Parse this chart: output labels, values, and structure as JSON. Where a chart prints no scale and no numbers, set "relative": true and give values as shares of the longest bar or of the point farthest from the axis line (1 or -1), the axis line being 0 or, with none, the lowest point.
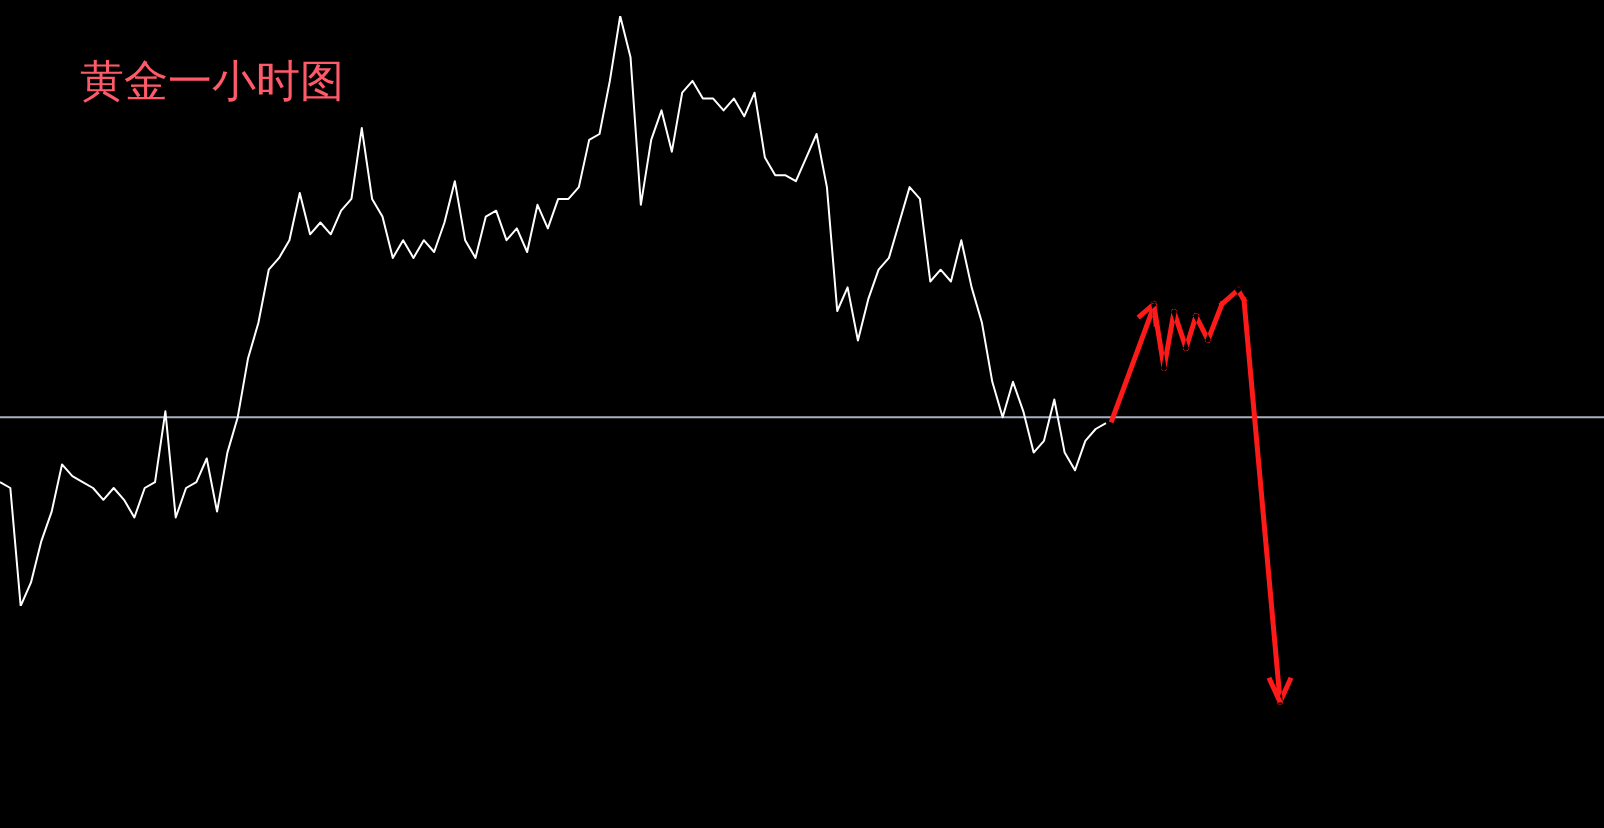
{
  "chart_data": {
    "type": "line",
    "title": "黄金一小时图",
    "relative": true,
    "categories": [
      null,
      null,
      null,
      null,
      null,
      null,
      null,
      null,
      null,
      null,
      null,
      null,
      null,
      null,
      null,
      null,
      null,
      null,
      null,
      null,
      null,
      null,
      null,
      null,
      null,
      null,
      null,
      null,
      null,
      null,
      null,
      null,
      null,
      null,
      null,
      null,
      null,
      null,
      null,
      null,
      null,
      null,
      null,
      null,
      null,
      null,
      null,
      null,
      null,
      null,
      null,
      null,
      null,
      null,
      null,
      null,
      null,
      null,
      null,
      null,
      null,
      null,
      null,
      null,
      null,
      null,
      null,
      null,
      null,
      null,
      null,
      null,
      null,
      null,
      null,
      null,
      null,
      null,
      null,
      null,
      null,
      null,
      null,
      null,
      null,
      null,
      null,
      null,
      null,
      null,
      null,
      null,
      null,
      null,
      null,
      null,
      null,
      null,
      null,
      null,
      null,
      null,
      null,
      null,
      null,
      null,
      null,
      null
    ],
    "series": [
      {
        "color": "#ffffff",
        "values": [
          0.21,
          0.2,
          0,
          0.04,
          0.11,
          0.16,
          0.24,
          0.22,
          0.21,
          0.2,
          0.18,
          0.2,
          0.18,
          0.15,
          0.2,
          0.21,
          0.33,
          0.15,
          0.2,
          0.21,
          0.25,
          0.16,
          0.26,
          0.32,
          0.42,
          0.48,
          0.57,
          0.59,
          0.62,
          0.7,
          0.63,
          0.65,
          0.63,
          0.67,
          0.69,
          0.81,
          0.69,
          0.66,
          0.59,
          0.62,
          0.59,
          0.62,
          0.6,
          0.65,
          0.72,
          0.62,
          0.59,
          0.66,
          0.67,
          0.62,
          0.64,
          0.6,
          0.68,
          0.64,
          0.69,
          0.69,
          0.71,
          0.79,
          0.8,
          0.89,
          1,
          0.93,
          0.68,
          0.79,
          0.84,
          0.77,
          0.87,
          0.89,
          0.86,
          0.86,
          0.84,
          0.86,
          0.83,
          0.87,
          0.76,
          0.73,
          0.73,
          0.72,
          0.76,
          0.8,
          0.71,
          0.5,
          0.54,
          0.45,
          0.52,
          0.57,
          0.59,
          0.65,
          0.71,
          0.69,
          0.55,
          0.57,
          0.55,
          0.62,
          0.54,
          0.48,
          0.38,
          0.32,
          0.38,
          0.33,
          0.26,
          0.28,
          0.35,
          0.26,
          0.23,
          0.28,
          0.3,
          0.31
        ]
      }
    ],
    "ref_lines": [
      {
        "axis": "y",
        "value": 0.32,
        "color": "#a8b0c0"
      }
    ]
  }
}
